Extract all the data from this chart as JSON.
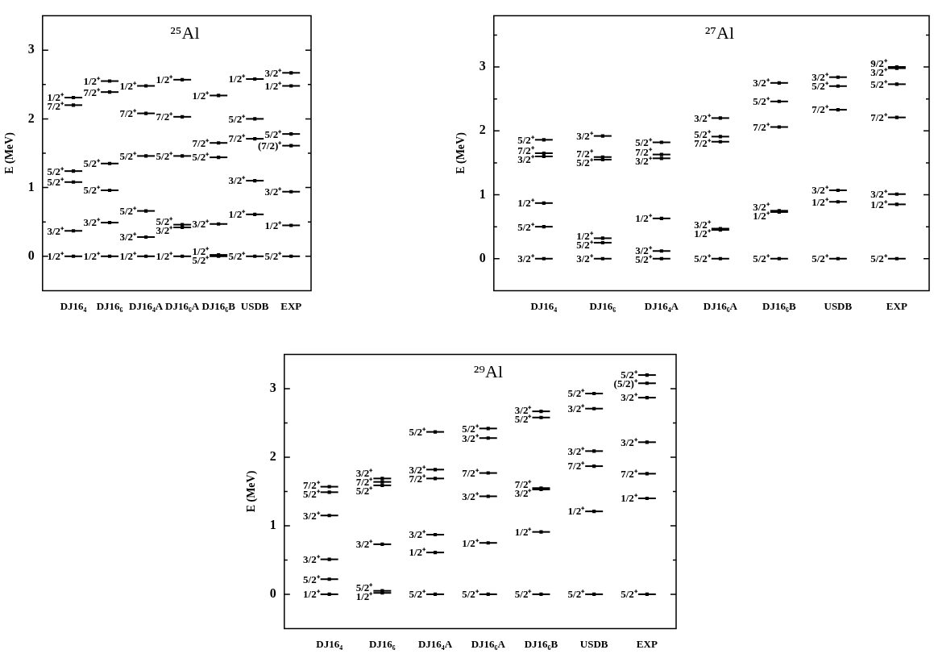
{
  "chart_data": [
    {
      "type": "scatter",
      "title": "²⁵Al",
      "ylabel": "E (MeV)",
      "categories": [
        "DJ16₄",
        "DJ16₆",
        "DJ16₄A",
        "DJ16₆A",
        "DJ16₆B",
        "USDB",
        "EXP"
      ],
      "ylim": [
        -0.5,
        3.5
      ],
      "yticks": [
        0,
        {
          "value": 0.5,
          "label": null
        },
        1,
        {
          "value": 1.5,
          "label": null
        },
        2,
        {
          "value": 2.5,
          "label": null
        },
        3
      ],
      "series": [
        {
          "color": "#000000",
          "x": [
            "DJ16₄",
            "DJ16₄",
            "DJ16₄",
            "DJ16₄",
            "DJ16₄",
            "DJ16₄"
          ],
          "values": [
            0,
            0.37,
            1.08,
            1.24,
            2.2,
            2.31
          ],
          "value_labels": [
            "1/2⁺",
            "3/2⁺",
            "5/2⁺",
            "5/2⁺",
            "7/2⁺",
            "1/2⁺"
          ]
        },
        {
          "color": "#000000",
          "x": [
            "DJ16₆",
            "DJ16₆",
            "DJ16₆",
            "DJ16₆",
            "DJ16₆",
            "DJ16₆"
          ],
          "values": [
            0,
            0.49,
            0.96,
            1.35,
            2.39,
            2.55
          ],
          "value_labels": [
            "1/2⁺",
            "3/2⁺",
            "5/2⁺",
            "5/2⁺",
            "7/2⁺",
            "1/2⁺"
          ]
        },
        {
          "color": "#000000",
          "x": [
            "DJ16₄A",
            "DJ16₄A",
            "DJ16₄A",
            "DJ16₄A",
            "DJ16₄A",
            "DJ16₄A"
          ],
          "values": [
            0,
            0.28,
            0.66,
            1.46,
            2.08,
            2.48
          ],
          "value_labels": [
            "1/2⁺",
            "3/2⁺",
            "5/2⁺",
            "5/2⁺",
            "7/2⁺",
            "1/2⁺"
          ]
        },
        {
          "color": "#000000",
          "x": [
            "DJ16₆A",
            "DJ16₆A",
            "DJ16₆A",
            "DJ16₆A",
            "DJ16₆A",
            "DJ16₆A"
          ],
          "values": [
            0,
            0.42,
            0.46,
            1.46,
            2.03,
            2.57
          ],
          "value_labels": [
            "1/2⁺",
            "3/2⁺",
            "5/2⁺",
            "5/2⁺",
            "7/2⁺",
            "1/2⁺"
          ]
        },
        {
          "color": "#000000",
          "x": [
            "DJ16₆B",
            "DJ16₆B",
            "DJ16₆B",
            "DJ16₆B",
            "DJ16₆B",
            "DJ16₆B"
          ],
          "values": [
            0,
            0.02,
            0.47,
            1.44,
            1.65,
            2.34
          ],
          "value_labels": [
            "5/2⁺",
            "1/2⁺",
            "3/2⁺",
            "5/2⁺",
            "7/2⁺",
            "1/2⁺"
          ]
        },
        {
          "color": "#000000",
          "x": [
            "USDB",
            "USDB",
            "USDB",
            "USDB",
            "USDB",
            "USDB"
          ],
          "values": [
            0,
            0.61,
            1.1,
            1.71,
            2.0,
            2.58
          ],
          "value_labels": [
            "5/2⁺",
            "1/2⁺",
            "3/2⁺",
            "7/2⁺",
            "5/2⁺",
            "1/2⁺"
          ]
        },
        {
          "color": "#000000",
          "x": [
            "EXP",
            "EXP",
            "EXP",
            "EXP",
            "EXP",
            "EXP",
            "EXP"
          ],
          "values": [
            0,
            0.45,
            0.94,
            1.61,
            1.78,
            2.48,
            2.67
          ],
          "value_labels": [
            "5/2⁺",
            "1/2⁺",
            "3/2⁺",
            "(7/2)⁺",
            "5/2⁺",
            "1/2⁺",
            "3/2⁺"
          ]
        }
      ]
    },
    {
      "type": "scatter",
      "title": "²⁷Al",
      "ylabel": "E (MeV)",
      "categories": [
        "DJ16₄",
        "DJ16₆",
        "DJ16₄A",
        "DJ16₆A",
        "DJ16₆B",
        "USDB",
        "EXP"
      ],
      "ylim": [
        -0.5,
        3.8
      ],
      "yticks": [
        0,
        {
          "value": 0.5,
          "label": null
        },
        1,
        {
          "value": 1.5,
          "label": null
        },
        2,
        {
          "value": 2.5,
          "label": null
        },
        3,
        {
          "value": 3.5,
          "label": null
        }
      ],
      "series": [
        {
          "color": "#000000",
          "x": [
            "DJ16₄",
            "DJ16₄",
            "DJ16₄",
            "DJ16₄",
            "DJ16₄",
            "DJ16₄"
          ],
          "values": [
            0,
            0.5,
            0.87,
            1.6,
            1.65,
            1.86
          ],
          "value_labels": [
            "3/2⁺",
            "5/2⁺",
            "1/2⁺",
            "3/2⁺",
            "7/2⁺",
            "5/2⁺"
          ]
        },
        {
          "color": "#000000",
          "x": [
            "DJ16₆",
            "DJ16₆",
            "DJ16₆",
            "DJ16₆",
            "DJ16₆",
            "DJ16₆"
          ],
          "values": [
            0,
            0.25,
            0.32,
            1.55,
            1.59,
            1.92
          ],
          "value_labels": [
            "3/2⁺",
            "5/2⁺",
            "1/2⁺",
            "5/2⁺",
            "7/2⁺",
            "3/2⁺"
          ]
        },
        {
          "color": "#000000",
          "x": [
            "DJ16₄A",
            "DJ16₄A",
            "DJ16₄A",
            "DJ16₄A",
            "DJ16₄A",
            "DJ16₄A"
          ],
          "values": [
            0,
            0.12,
            0.63,
            1.57,
            1.63,
            1.82
          ],
          "value_labels": [
            "5/2⁺",
            "3/2⁺",
            "1/2⁺",
            "3/2⁺",
            "7/2⁺",
            "5/2⁺"
          ]
        },
        {
          "color": "#000000",
          "x": [
            "DJ16₆A",
            "DJ16₆A",
            "DJ16₆A",
            "DJ16₆A",
            "DJ16₆A",
            "DJ16₆A"
          ],
          "values": [
            0,
            0.45,
            0.47,
            1.83,
            1.91,
            2.2
          ],
          "value_labels": [
            "5/2⁺",
            "1/2⁺",
            "3/2⁺",
            "7/2⁺",
            "5/2⁺",
            "3/2⁺"
          ]
        },
        {
          "color": "#000000",
          "x": [
            "DJ16₆B",
            "DJ16₆B",
            "DJ16₆B",
            "DJ16₆B",
            "DJ16₆B",
            "DJ16₆B"
          ],
          "values": [
            0,
            0.73,
            0.75,
            2.06,
            2.46,
            2.75
          ],
          "value_labels": [
            "5/2⁺",
            "1/2⁺",
            "3/2⁺",
            "7/2⁺",
            "5/2⁺",
            "3/2⁺"
          ]
        },
        {
          "color": "#000000",
          "x": [
            "USDB",
            "USDB",
            "USDB",
            "USDB",
            "USDB",
            "USDB"
          ],
          "values": [
            0,
            0.89,
            1.07,
            2.33,
            2.7,
            2.84
          ],
          "value_labels": [
            "5/2⁺",
            "1/2⁺",
            "3/2⁺",
            "7/2⁺",
            "5/2⁺",
            "3/2⁺"
          ]
        },
        {
          "color": "#000000",
          "x": [
            "EXP",
            "EXP",
            "EXP",
            "EXP",
            "EXP",
            "EXP",
            "EXP"
          ],
          "values": [
            0,
            0.85,
            1.01,
            2.21,
            2.73,
            2.98,
            3.0
          ],
          "value_labels": [
            "5/2⁺",
            "1/2⁺",
            "3/2⁺",
            "7/2⁺",
            "5/2⁺",
            "3/2⁺",
            "9/2⁺"
          ]
        }
      ]
    },
    {
      "type": "scatter",
      "title": "²⁹Al",
      "ylabel": "E (MeV)",
      "categories": [
        "DJ16₄",
        "DJ16₆",
        "DJ16₄A",
        "DJ16₆A",
        "DJ16₆B",
        "USDB",
        "EXP"
      ],
      "ylim": [
        -0.5,
        3.5
      ],
      "yticks": [
        0,
        {
          "value": 0.5,
          "label": null
        },
        1,
        {
          "value": 1.5,
          "label": null
        },
        2,
        {
          "value": 2.5,
          "label": null
        },
        3
      ],
      "series": [
        {
          "color": "#000000",
          "x": [
            "DJ16₄",
            "DJ16₄",
            "DJ16₄",
            "DJ16₄",
            "DJ16₄",
            "DJ16₄"
          ],
          "values": [
            0,
            0.22,
            0.51,
            1.15,
            1.49,
            1.57
          ],
          "value_labels": [
            "1/2⁺",
            "5/2⁺",
            "3/2⁺",
            "3/2⁺",
            "5/2⁺",
            "7/2⁺"
          ]
        },
        {
          "color": "#000000",
          "x": [
            "DJ16₆",
            "DJ16₆",
            "DJ16₆",
            "DJ16₆",
            "DJ16₆",
            "DJ16₆"
          ],
          "values": [
            0.02,
            0.05,
            0.73,
            1.59,
            1.64,
            1.69
          ],
          "value_labels": [
            "1/2⁺",
            "5/2⁺",
            "3/2⁺",
            "5/2⁺",
            "7/2⁺",
            "3/2⁺"
          ]
        },
        {
          "color": "#000000",
          "x": [
            "DJ16₄A",
            "DJ16₄A",
            "DJ16₄A",
            "DJ16₄A",
            "DJ16₄A",
            "DJ16₄A"
          ],
          "values": [
            0,
            0.61,
            0.87,
            1.69,
            1.82,
            2.37
          ],
          "value_labels": [
            "5/2⁺",
            "1/2⁺",
            "3/2⁺",
            "7/2⁺",
            "3/2⁺",
            "5/2⁺"
          ]
        },
        {
          "color": "#000000",
          "x": [
            "DJ16₆A",
            "DJ16₆A",
            "DJ16₆A",
            "DJ16₆A",
            "DJ16₆A",
            "DJ16₆A"
          ],
          "values": [
            0,
            0.75,
            1.43,
            1.77,
            2.28,
            2.42
          ],
          "value_labels": [
            "5/2⁺",
            "1/2⁺",
            "3/2⁺",
            "7/2⁺",
            "3/2⁺",
            "5/2⁺"
          ]
        },
        {
          "color": "#000000",
          "x": [
            "DJ16₆B",
            "DJ16₆B",
            "DJ16₆B",
            "DJ16₆B",
            "DJ16₆B",
            "DJ16₆B"
          ],
          "values": [
            0,
            0.91,
            1.53,
            1.55,
            2.58,
            2.67
          ],
          "value_labels": [
            "5/2⁺",
            "1/2⁺",
            "3/2⁺",
            "7/2⁺",
            "5/2⁺",
            "3/2⁺"
          ]
        },
        {
          "color": "#000000",
          "x": [
            "USDB",
            "USDB",
            "USDB",
            "USDB",
            "USDB",
            "USDB"
          ],
          "values": [
            0,
            1.21,
            1.87,
            2.09,
            2.71,
            2.93
          ],
          "value_labels": [
            "5/2⁺",
            "1/2⁺",
            "7/2⁺",
            "3/2⁺",
            "3/2⁺",
            "5/2⁺"
          ]
        },
        {
          "color": "#000000",
          "x": [
            "EXP",
            "EXP",
            "EXP",
            "EXP",
            "EXP",
            "EXP",
            "EXP"
          ],
          "values": [
            0,
            1.4,
            1.76,
            2.22,
            2.87,
            3.08,
            3.2
          ],
          "value_labels": [
            "5/2⁺",
            "1/2⁺",
            "7/2⁺",
            "3/2⁺",
            "3/2⁺",
            "(5/2)⁺",
            "5/2⁺"
          ]
        }
      ]
    }
  ]
}
